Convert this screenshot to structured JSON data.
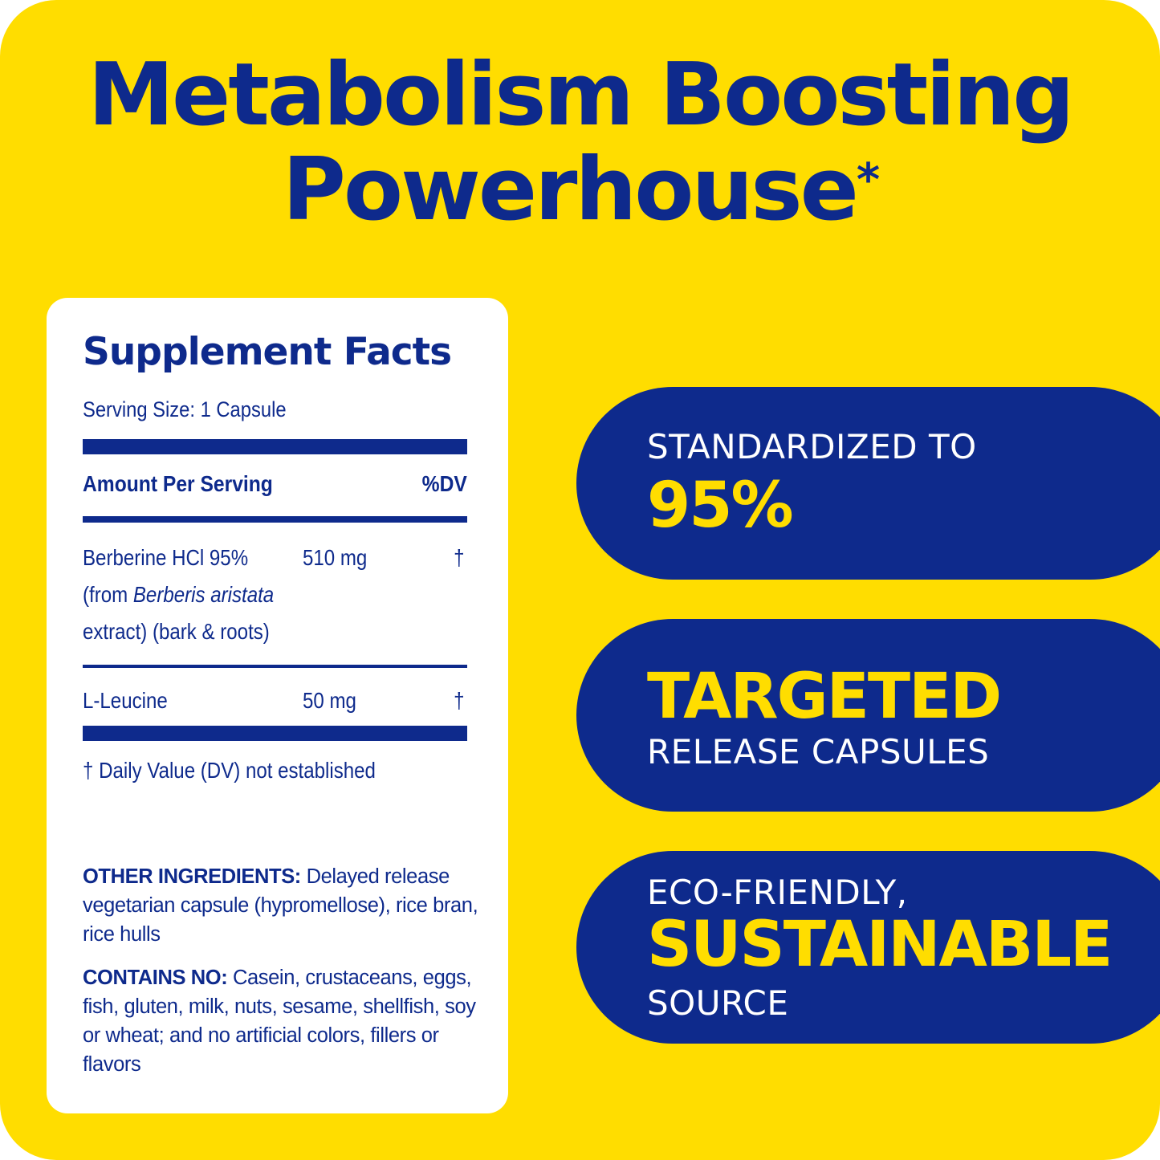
{
  "headline": {
    "line1": "Metabolism Boosting",
    "line2": "Powerhouse",
    "mark": "*"
  },
  "supplement_facts": {
    "title": "Supplement Facts",
    "serving_size": "Serving Size: 1 Capsule",
    "amount_header": "Amount Per Serving",
    "dv_header": "%DV",
    "ingredients": [
      {
        "name_line1": "Berberine HCl 95%",
        "name_line2_prefix": "(from ",
        "name_line2_italic": "Berberis aristata",
        "name_line3": "extract) (bark & roots)",
        "amount": "510 mg",
        "dv": "†"
      },
      {
        "name_line1": "L-Leucine",
        "amount": "50 mg",
        "dv": "†"
      }
    ],
    "footnote": "† Daily Value (DV) not established",
    "other_ingredients_label": "OTHER INGREDIENTS:",
    "other_ingredients_text": " Delayed release vegetarian capsule (hypromellose), rice bran, rice hulls",
    "contains_no_label": "CONTAINS NO:",
    "contains_no_text": " Casein, crustaceans, eggs, fish, gluten, milk, nuts, sesame, shellfish, soy or wheat; and no artificial colors, fillers or flavors"
  },
  "features": [
    {
      "line1": "STANDARDIZED TO",
      "line2": "95%"
    },
    {
      "line1": "TARGETED",
      "line2": "RELEASE CAPSULES"
    },
    {
      "line1": "ECO-FRIENDLY,",
      "line2": "SUSTAINABLE",
      "line3": "SOURCE"
    }
  ],
  "colors": {
    "background": "#FFDD00",
    "navy": "#0E2A8C",
    "card": "#FFFFFF"
  }
}
